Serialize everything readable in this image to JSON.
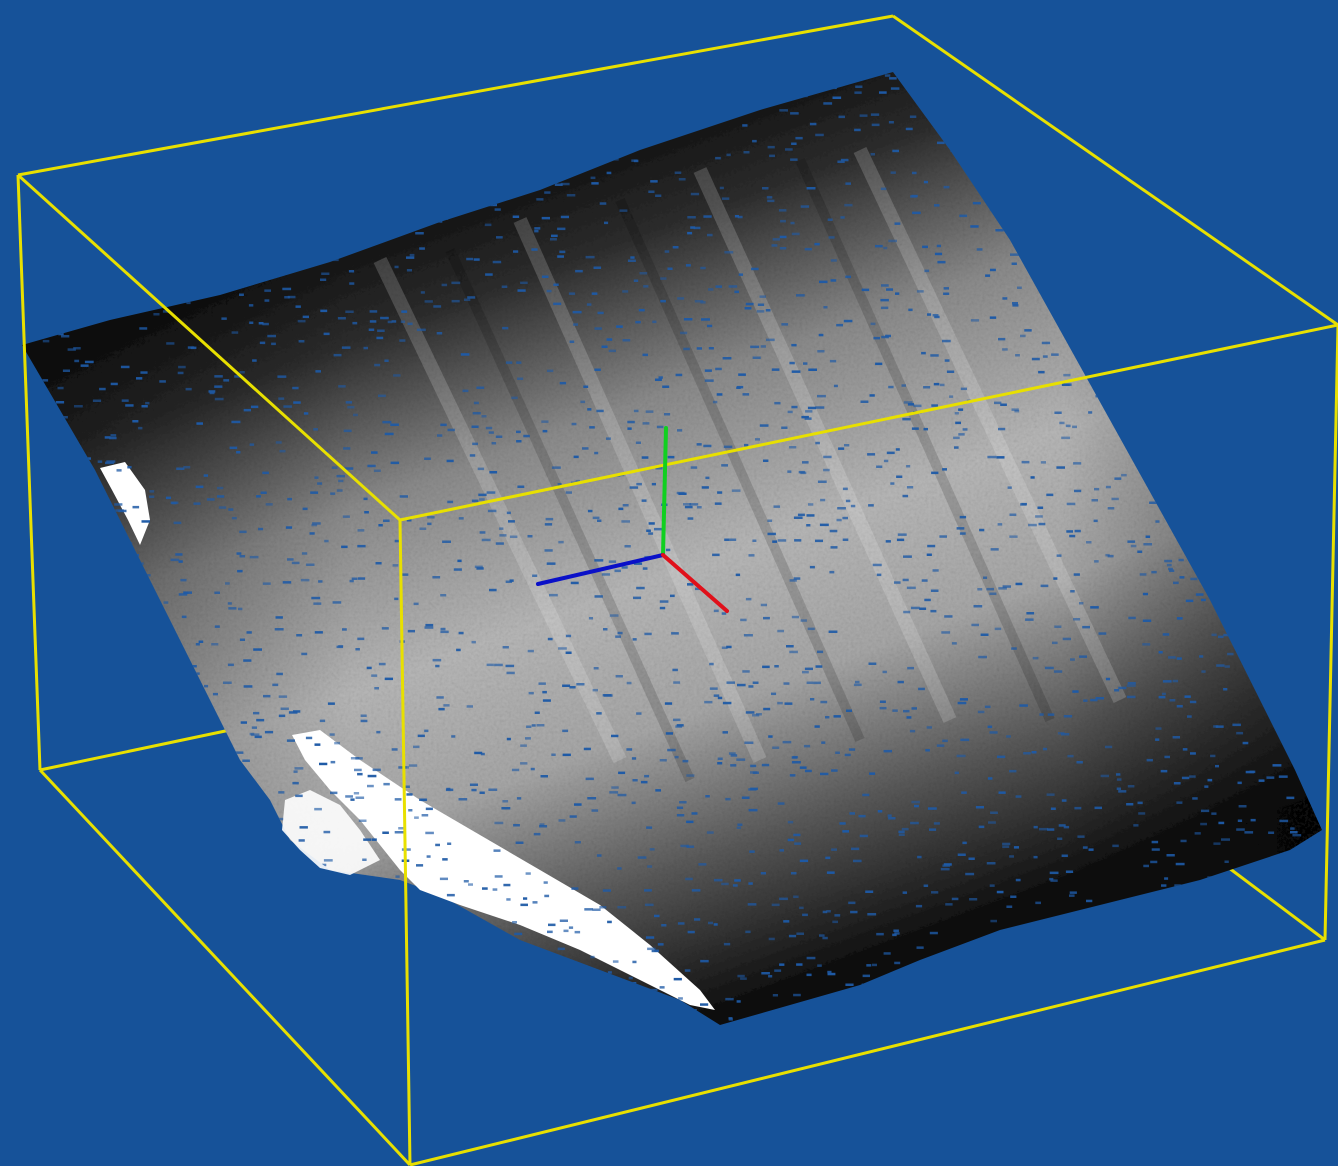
{
  "viewer": {
    "background_color": "#165299",
    "bounding_box_color": "#e8e000",
    "point_cloud": {
      "colormap": "grayscale",
      "gap_color": "#1e5aa6"
    },
    "axes_gizmo": {
      "x_color": "#e0101a",
      "y_color": "#10d020",
      "z_color": "#0a10c8"
    }
  }
}
